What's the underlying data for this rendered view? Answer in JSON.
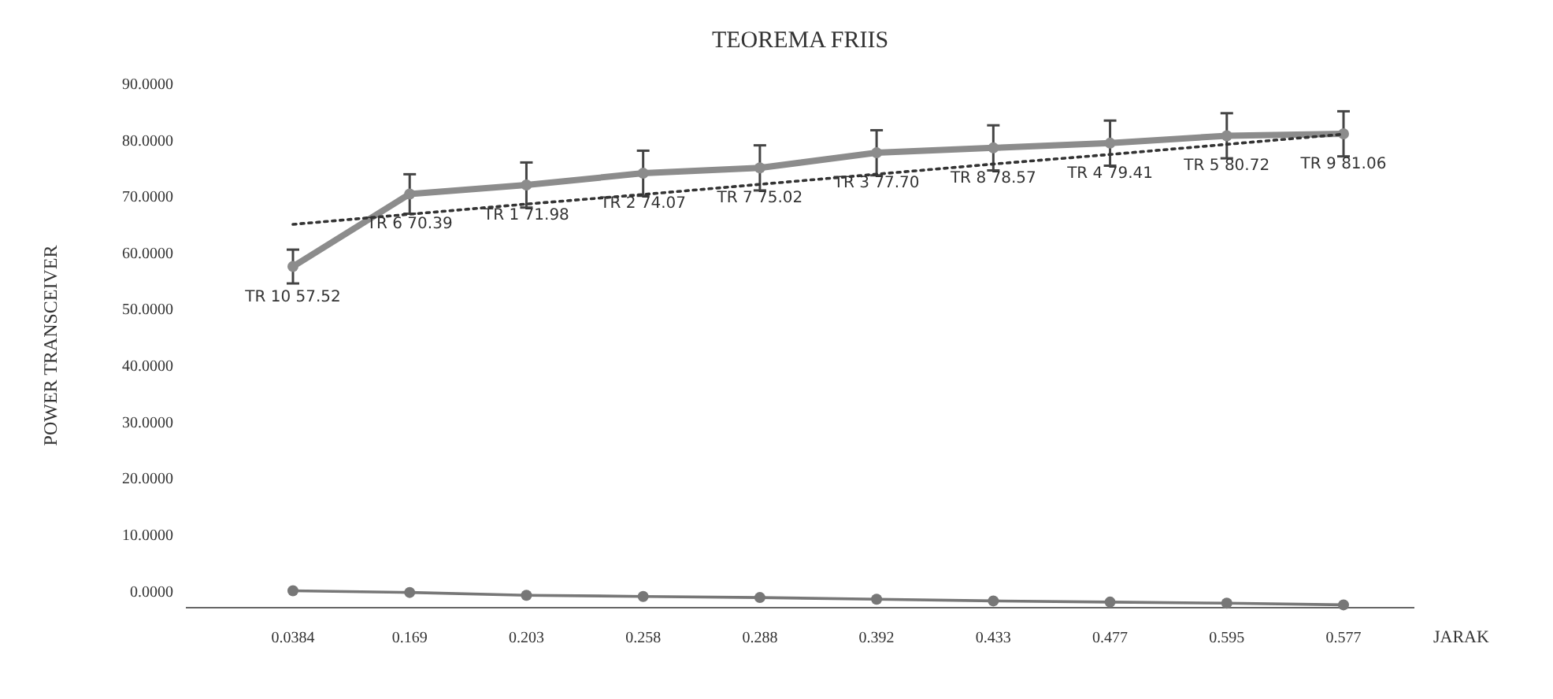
{
  "chart_data": {
    "type": "line",
    "title": "TEOREMA FRIIS",
    "xlabel": "JARAK",
    "ylabel": "POWER TRANSCEIVER",
    "categories": [
      "0.0384",
      "0.169",
      "0.203",
      "0.258",
      "0.288",
      "0.392",
      "0.433",
      "0.477",
      "0.595",
      "0.577"
    ],
    "series": [
      {
        "color": "#8c8c8c",
        "values": [
          57.52,
          70.39,
          71.98,
          74.07,
          75.02,
          77.7,
          78.57,
          79.41,
          80.72,
          81.06
        ],
        "errors": [
          3,
          3.5,
          4,
          4,
          4,
          4,
          4,
          4,
          4,
          4
        ],
        "value_labels": [
          "TR 10 57.52",
          "TR 6 70.39",
          "TR 1 71.98",
          "TR 2 74.07",
          "TR 7 75.02",
          "TR 3 77.70",
          "TR 8 78.57",
          "TR 4 79.41",
          "TR 5 80.72",
          "TR 9 81.06"
        ],
        "marker": "circle",
        "line_style": "solid"
      },
      {
        "color": "#333333",
        "values": [
          65,
          66.8,
          68.6,
          70.3,
          72.1,
          73.9,
          75.7,
          77.4,
          79.2,
          81
        ],
        "marker": "none",
        "line_style": "dotted"
      },
      {
        "color": "#777777",
        "values": [
          0,
          -0.3,
          -0.8,
          -1,
          -1.2,
          -1.5,
          -1.8,
          -2,
          -2.2,
          -2.5
        ],
        "marker": "circle",
        "line_style": "solid"
      }
    ],
    "ylim": [
      -3,
      90
    ],
    "yticks": [
      {
        "value": 0,
        "label": "0.0000"
      },
      {
        "value": 10,
        "label": "10.0000"
      },
      {
        "value": 20,
        "label": "20.0000"
      },
      {
        "value": 30,
        "label": "30.0000"
      },
      {
        "value": 40,
        "label": "40.0000"
      },
      {
        "value": 50,
        "label": "50.0000"
      },
      {
        "value": 60,
        "label": "60.0000"
      },
      {
        "value": 70,
        "label": "70.0000"
      },
      {
        "value": 80,
        "label": "80.0000"
      },
      {
        "value": 90,
        "label": "90.0000"
      }
    ],
    "grid": false
  }
}
